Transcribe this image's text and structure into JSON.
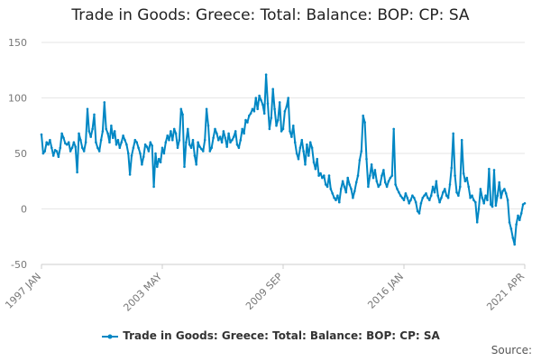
{
  "chart_data": {
    "type": "line",
    "title": "Trade in Goods: Greece: Total: Balance: BOP: CP: SA",
    "xlabel": "",
    "ylabel": "",
    "x_ticks": [
      "1997 JAN",
      "2003 MAY",
      "2009 SEP",
      "2016 JAN",
      "2021 APR"
    ],
    "y_ticks": [
      150,
      100,
      50,
      0,
      -50
    ],
    "ylim": [
      -50,
      150
    ],
    "grid": true,
    "legend_position": "bottom",
    "x_start": "1997 JAN",
    "x_end": "2021 APR",
    "series": [
      {
        "name": "Trade in Goods: Greece: Total: Balance: BOP: CP: SA",
        "color": "#0087c4",
        "values": [
          67,
          50,
          52,
          60,
          58,
          62,
          55,
          48,
          53,
          52,
          47,
          55,
          68,
          64,
          59,
          58,
          60,
          52,
          55,
          60,
          56,
          33,
          68,
          62,
          55,
          52,
          60,
          90,
          70,
          65,
          72,
          85,
          60,
          55,
          52,
          62,
          70,
          96,
          72,
          68,
          60,
          75,
          64,
          70,
          58,
          62,
          55,
          60,
          66,
          62,
          58,
          50,
          31,
          48,
          55,
          62,
          60,
          55,
          50,
          40,
          47,
          58,
          56,
          52,
          60,
          57,
          20,
          50,
          38,
          45,
          42,
          55,
          50,
          60,
          66,
          62,
          70,
          62,
          72,
          68,
          55,
          62,
          90,
          85,
          38,
          60,
          72,
          58,
          55,
          62,
          48,
          40,
          60,
          56,
          54,
          52,
          62,
          90,
          75,
          52,
          55,
          64,
          72,
          68,
          62,
          65,
          60,
          70,
          64,
          56,
          68,
          60,
          62,
          65,
          70,
          58,
          55,
          62,
          72,
          68,
          80,
          78,
          84,
          86,
          90,
          88,
          100,
          90,
          102,
          98,
          94,
          86,
          121,
          95,
          72,
          82,
          108,
          90,
          75,
          80,
          96,
          70,
          72,
          88,
          92,
          100,
          70,
          65,
          75,
          60,
          50,
          45,
          55,
          62,
          52,
          40,
          58,
          48,
          60,
          55,
          42,
          36,
          45,
          30,
          32,
          28,
          30,
          22,
          20,
          30,
          18,
          14,
          10,
          8,
          12,
          6,
          18,
          25,
          20,
          15,
          28,
          22,
          18,
          10,
          16,
          24,
          30,
          44,
          52,
          84,
          78,
          45,
          20,
          30,
          40,
          28,
          35,
          25,
          20,
          22,
          30,
          35,
          24,
          20,
          25,
          28,
          30,
          72,
          22,
          18,
          15,
          12,
          10,
          8,
          14,
          10,
          5,
          8,
          12,
          10,
          6,
          -2,
          -4,
          5,
          10,
          12,
          14,
          10,
          8,
          12,
          20,
          15,
          25,
          12,
          6,
          10,
          15,
          18,
          12,
          10,
          22,
          37,
          68,
          30,
          15,
          12,
          20,
          62,
          32,
          25,
          28,
          20,
          10,
          12,
          8,
          6,
          -12,
          0,
          18,
          10,
          5,
          12,
          8,
          36,
          4,
          2,
          35,
          3,
          12,
          24,
          10,
          16,
          18,
          14,
          8,
          -12,
          -18,
          -26,
          -32,
          -14,
          -6,
          -10,
          -4,
          4,
          5
        ]
      }
    ]
  },
  "legend": {
    "label": "Trade in Goods: Greece: Total: Balance: BOP: CP: SA"
  },
  "source_label": "Source:"
}
